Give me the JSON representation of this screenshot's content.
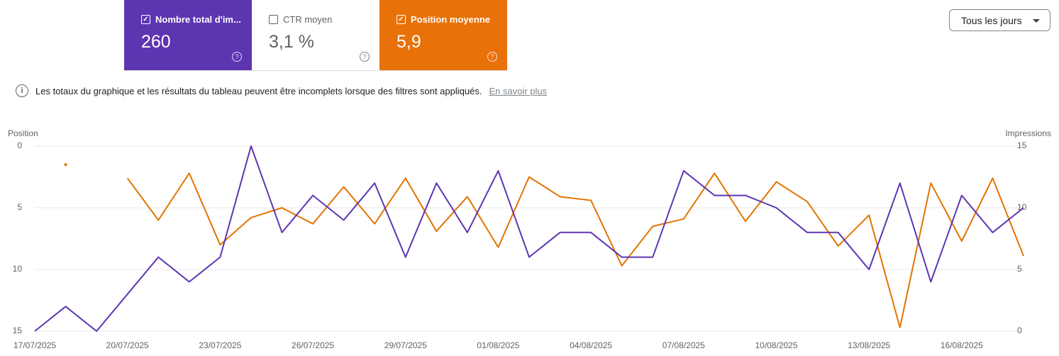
{
  "cards": [
    {
      "label": "Nombre total d'im...",
      "value": "260",
      "checked": true,
      "color": "#5e35b1"
    },
    {
      "label": "CTR moyen",
      "value": "3,1 %",
      "checked": false,
      "color": "#ffffff"
    },
    {
      "label": "Position moyenne",
      "value": "5,9",
      "checked": true,
      "color": "#e8710a"
    }
  ],
  "dropdown": "Tous les jours",
  "notice": {
    "text": "Les totaux du graphique et les résultats du tableau peuvent être incomplets lorsque des filtres sont appliqués.",
    "link": "En savoir plus"
  },
  "chart_data": {
    "type": "line",
    "y_label": "Position",
    "y2_label": "Impressions",
    "categories": [
      "17/07/2025",
      null,
      null,
      "20/07/2025",
      null,
      null,
      "23/07/2025",
      null,
      null,
      "26/07/2025",
      null,
      null,
      "29/07/2025",
      null,
      null,
      "01/08/2025",
      null,
      null,
      "04/08/2025",
      null,
      null,
      "07/08/2025",
      null,
      null,
      "10/08/2025",
      null,
      null,
      "13/08/2025",
      null,
      null,
      "16/08/2025",
      null,
      null
    ],
    "ylim": [
      15,
      0
    ],
    "yticks": [
      0,
      5,
      10,
      15
    ],
    "y2lim": [
      0,
      15
    ],
    "y2ticks": [
      0,
      5,
      10,
      15
    ],
    "grid": true,
    "series": [
      {
        "name": "Impressions",
        "color": "#5e35b1",
        "axis": "y2",
        "values": [
          0,
          2,
          0,
          3,
          6,
          4,
          6,
          15,
          8,
          11,
          9,
          12,
          6,
          12,
          8,
          13,
          6,
          8,
          8,
          6,
          6,
          13,
          11,
          11,
          10,
          8,
          8,
          5,
          12,
          4,
          11,
          8,
          10
        ]
      },
      {
        "name": "Position",
        "color": "#e37400",
        "axis": "y",
        "values": [
          null,
          1.5,
          null,
          2.6,
          6.0,
          2.2,
          8.0,
          5.8,
          5.0,
          6.3,
          3.3,
          6.3,
          2.6,
          6.9,
          4.1,
          8.2,
          2.5,
          4.1,
          4.4,
          9.7,
          6.5,
          5.9,
          2.2,
          6.1,
          2.9,
          4.5,
          8.1,
          5.6,
          14.7,
          3.0,
          7.7,
          2.6,
          8.9
        ]
      }
    ]
  }
}
